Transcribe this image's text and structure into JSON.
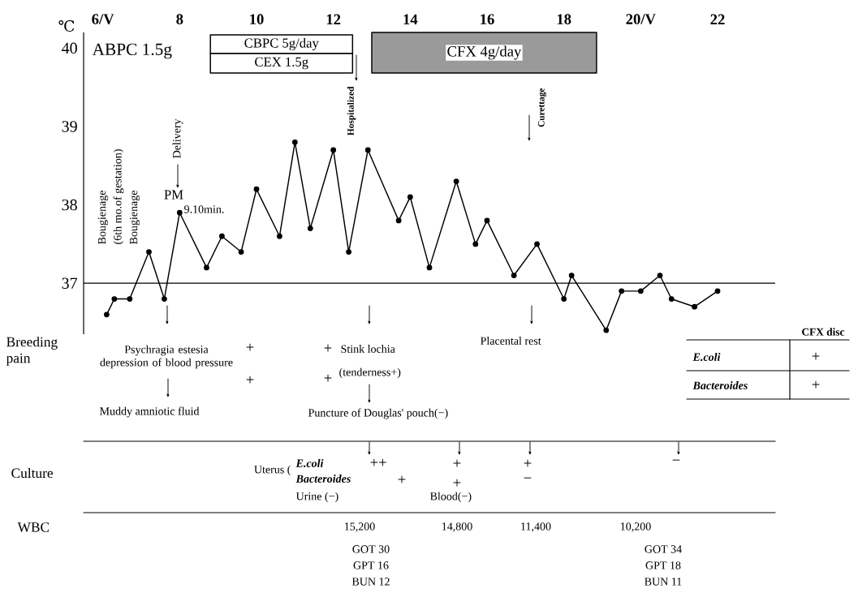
{
  "chart_data": {
    "type": "line",
    "ylabel": "℃",
    "x": [
      6.1,
      6.3,
      6.7,
      7.2,
      7.6,
      8.0,
      8.7,
      9.1,
      9.6,
      10.0,
      10.6,
      11.0,
      11.4,
      12.0,
      12.4,
      12.9,
      13.7,
      14.0,
      14.5,
      15.2,
      15.7,
      16.0,
      16.7,
      17.3,
      18.0,
      18.2,
      19.1,
      19.5,
      20.0,
      20.5,
      20.8,
      21.4,
      22.0
    ],
    "values": [
      36.6,
      36.8,
      36.8,
      37.4,
      36.8,
      37.9,
      37.2,
      37.6,
      37.4,
      38.2,
      37.6,
      38.8,
      37.7,
      38.7,
      37.4,
      38.7,
      37.8,
      38.1,
      37.2,
      38.3,
      37.5,
      37.8,
      37.1,
      37.5,
      36.8,
      37.1,
      36.4,
      36.9,
      36.9,
      37.1,
      36.8,
      36.7,
      36.9
    ],
    "color": "#000000",
    "marker": "circle",
    "line_style": "solid",
    "xlim": [
      5.5,
      23.5
    ],
    "ylim": [
      36.35,
      40.2
    ],
    "xticks": [
      {
        "value": 6,
        "label": "6/V"
      },
      8,
      10,
      12,
      14,
      16,
      18,
      {
        "value": 20,
        "label": "20/V"
      },
      22
    ],
    "yticks": [
      37,
      38,
      39,
      40
    ],
    "grid": false,
    "ref_lines": [
      {
        "axis": "y",
        "value": 37
      }
    ],
    "bands": [
      {
        "axis": "x",
        "from": 8.8,
        "to": 12.5,
        "label": "CBPC 5g/day",
        "color": "#ffffff"
      },
      {
        "axis": "x",
        "from": 8.8,
        "to": 12.5,
        "label": "CEX 1.5g",
        "color": "#ffffff"
      },
      {
        "axis": "x",
        "from": 13.0,
        "to": 18.85,
        "label": "CFX 4g/day",
        "color": "#9a9a9a"
      }
    ],
    "annotations": [
      "ABPC 1.5g",
      "Bougienage",
      "(6th mo.of gestation)",
      "Bougienage",
      "Delivery",
      "PM",
      "9.10min.",
      "Hospitalized",
      "Curettage",
      "Breeding pain",
      "Psychragia estesia depression of blood pressure",
      "+",
      "+",
      "Muddy amniotic fluid",
      "+",
      "Stink lochia",
      "+",
      "(tenderness+)",
      "Puncture of Douglas' pouch(−)",
      "Placental rest",
      "Culture",
      "Uterus (",
      "E.coli",
      "++",
      "Bacteroides",
      "+",
      "Urine (−)",
      "+",
      "+",
      "Blood(−)",
      "+",
      "−",
      "−",
      "WBC",
      "15,200",
      "14,800",
      "11,400",
      "10,200",
      "GOT 30",
      "GPT 16",
      "BUN 12",
      "GOT 34",
      "GPT 18",
      "BUN 11",
      "CFX disc",
      "E.coli",
      "+",
      "Bacteroides",
      "+"
    ]
  }
}
